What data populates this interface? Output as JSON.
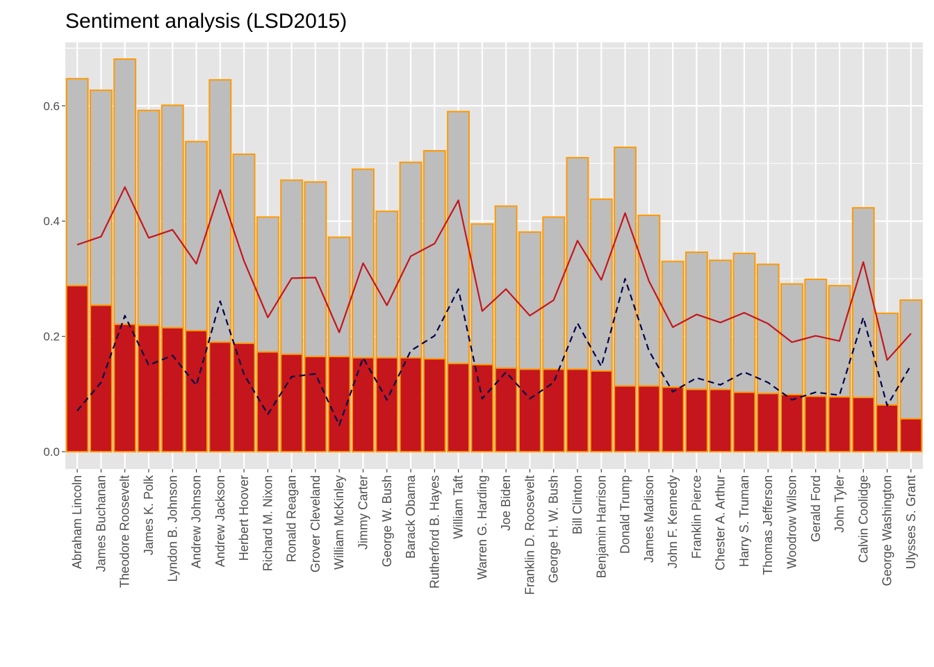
{
  "chart_data": {
    "type": "bar",
    "title": "Sentiment analysis (LSD2015)",
    "xlabel": "",
    "ylabel": "",
    "ylim": [
      -0.03,
      0.71
    ],
    "yticks": [
      0.0,
      0.2,
      0.4,
      0.6
    ],
    "ytick_labels": [
      "0.0",
      "0.2",
      "0.4",
      "0.6"
    ],
    "grid": true,
    "legend": "none",
    "colors": {
      "panel_bg": "#e5e5e5",
      "grid": "#ffffff",
      "bar_total_fill": "#bdbdbd",
      "bar_outline": "#ff9900",
      "bar_inner_fill": "#c4161c",
      "solid_line": "#c4161c",
      "dashed_line": "#00004d"
    },
    "categories": [
      "Abraham Lincoln",
      "James Buchanan",
      "Theodore Roosevelt",
      "James K. Polk",
      "Lyndon B. Johnson",
      "Andrew Johnson",
      "Andrew Jackson",
      "Herbert Hoover",
      "Richard M. Nixon",
      "Ronald Reagan",
      "Grover Cleveland",
      "William McKinley",
      "Jimmy Carter",
      "George W. Bush",
      "Barack Obama",
      "Rutherford B. Hayes",
      "William Taft",
      "Warren G. Harding",
      "Joe Biden",
      "Franklin D. Roosevelt",
      "George H. W. Bush",
      "Bill Clinton",
      "Benjamin Harrison",
      "Donald Trump",
      "James Madison",
      "John F. Kennedy",
      "Franklin Pierce",
      "Chester A. Arthur",
      "Harry S. Truman",
      "Thomas Jefferson",
      "Woodrow Wilson",
      "Gerald Ford",
      "John Tyler",
      "Calvin Coolidge",
      "George Washington",
      "Ulysses S. Grant"
    ],
    "series": [
      {
        "kind": "bar-total",
        "values": [
          0.647,
          0.627,
          0.681,
          0.592,
          0.601,
          0.538,
          0.645,
          0.516,
          0.407,
          0.471,
          0.468,
          0.372,
          0.49,
          0.417,
          0.502,
          0.522,
          0.59,
          0.395,
          0.426,
          0.381,
          0.407,
          0.51,
          0.438,
          0.528,
          0.41,
          0.33,
          0.346,
          0.332,
          0.344,
          0.325,
          0.291,
          0.299,
          0.288,
          0.423,
          0.24,
          0.263
        ]
      },
      {
        "kind": "bar-inner",
        "values": [
          0.288,
          0.254,
          0.221,
          0.219,
          0.215,
          0.21,
          0.19,
          0.188,
          0.173,
          0.169,
          0.165,
          0.165,
          0.163,
          0.163,
          0.163,
          0.161,
          0.153,
          0.151,
          0.145,
          0.143,
          0.143,
          0.143,
          0.14,
          0.114,
          0.114,
          0.112,
          0.108,
          0.108,
          0.103,
          0.101,
          0.099,
          0.096,
          0.095,
          0.094,
          0.081,
          0.057
        ]
      },
      {
        "kind": "line-solid",
        "values": [
          0.359,
          0.373,
          0.459,
          0.371,
          0.385,
          0.326,
          0.454,
          0.331,
          0.233,
          0.301,
          0.302,
          0.207,
          0.327,
          0.254,
          0.339,
          0.361,
          0.436,
          0.244,
          0.282,
          0.236,
          0.263,
          0.366,
          0.298,
          0.414,
          0.296,
          0.216,
          0.238,
          0.224,
          0.241,
          0.222,
          0.19,
          0.201,
          0.192,
          0.329,
          0.159,
          0.205
        ]
      },
      {
        "kind": "line-dashed",
        "values": [
          0.071,
          0.12,
          0.236,
          0.15,
          0.167,
          0.115,
          0.261,
          0.134,
          0.065,
          0.13,
          0.135,
          0.046,
          0.163,
          0.09,
          0.175,
          0.201,
          0.282,
          0.092,
          0.138,
          0.092,
          0.12,
          0.223,
          0.148,
          0.3,
          0.175,
          0.104,
          0.128,
          0.116,
          0.138,
          0.12,
          0.09,
          0.103,
          0.098,
          0.233,
          0.08,
          0.15
        ]
      }
    ]
  }
}
